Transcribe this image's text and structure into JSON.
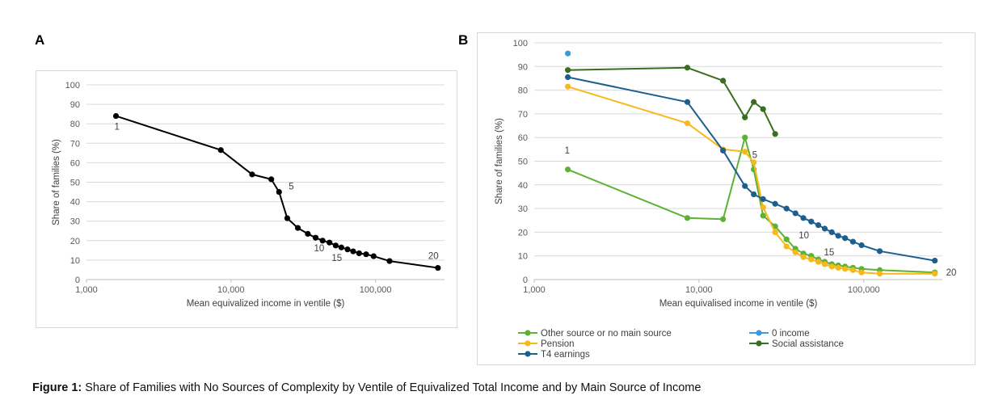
{
  "panel_a_letter": "A",
  "panel_b_letter": "B",
  "caption": {
    "label": "Figure 1:",
    "text": "Share of Families with No Sources of Complexity by Ventile of Equivalized Total Income and by Main Source of Income"
  },
  "chart_data": [
    {
      "type": "line",
      "panel": "A",
      "xlabel": "Mean equivalized income in ventile ($)",
      "ylabel": "Share of families (%)",
      "xscale": "log",
      "xlim": [
        1000,
        300000
      ],
      "ylim": [
        0,
        100
      ],
      "x_ticks": [
        1000,
        10000,
        100000
      ],
      "x_tick_labels": [
        "1,000",
        "10,000",
        "100,000"
      ],
      "y_ticks": [
        0,
        10,
        20,
        30,
        40,
        50,
        60,
        70,
        80,
        90,
        100
      ],
      "grid": true,
      "series": [
        {
          "color": "#000000",
          "x": [
            1600,
            8500,
            14000,
            19000,
            21500,
            24500,
            29000,
            34000,
            38500,
            43000,
            48000,
            53000,
            58000,
            64000,
            70000,
            77000,
            86000,
            97000,
            125000,
            270000
          ],
          "values": [
            84,
            66.5,
            54,
            51.5,
            45,
            31.5,
            26.5,
            23.5,
            21.5,
            20,
            19,
            17.5,
            16.5,
            15.5,
            14.5,
            13.5,
            13,
            12,
            9.5,
            6
          ]
        }
      ],
      "annotations": [
        {
          "text": "1",
          "x": 1600,
          "y": 84
        },
        {
          "text": "5",
          "x": 21500,
          "y": 45
        },
        {
          "text": "10",
          "x": 38500,
          "y": 21.5
        },
        {
          "text": "15",
          "x": 58000,
          "y": 16.5
        },
        {
          "text": "20",
          "x": 270000,
          "y": 6
        }
      ]
    },
    {
      "type": "line",
      "panel": "B",
      "xlabel": "Mean equivalised income in ventile ($)",
      "ylabel": "Share of families (%)",
      "xscale": "log",
      "xlim": [
        1000,
        300000
      ],
      "ylim": [
        0,
        100
      ],
      "x_ticks": [
        1000,
        10000,
        100000
      ],
      "x_tick_labels": [
        "1,000",
        "10,000",
        "100,000"
      ],
      "y_ticks": [
        0,
        10,
        20,
        30,
        40,
        50,
        60,
        70,
        80,
        90,
        100
      ],
      "grid": true,
      "legend": "bottom",
      "series": [
        {
          "name": "Other source or no main source",
          "color": "#5db134",
          "x": [
            1600,
            8500,
            14000,
            19000,
            21500,
            24500,
            29000,
            34000,
            38500,
            43000,
            48000,
            53000,
            58000,
            64000,
            70000,
            77000,
            86000,
            97000,
            125000,
            270000
          ],
          "values": [
            46.5,
            26,
            25.5,
            60,
            46.5,
            27,
            22.5,
            17,
            13,
            11,
            10,
            8.5,
            7.5,
            6.5,
            6,
            5.5,
            5,
            4.5,
            4,
            3
          ]
        },
        {
          "name": "0 income",
          "color": "#3b9ad8",
          "x": [
            1600
          ],
          "values": [
            95.5
          ]
        },
        {
          "name": "Pension",
          "color": "#f7b91a",
          "x": [
            1600,
            8500,
            14000,
            19000,
            21500,
            24500,
            29000,
            34000,
            38500,
            43000,
            48000,
            53000,
            58000,
            64000,
            70000,
            77000,
            86000,
            97000,
            125000,
            270000
          ],
          "values": [
            81.5,
            66,
            55,
            54,
            49.5,
            30.5,
            20,
            14,
            11.5,
            9.5,
            8.5,
            7.5,
            6.5,
            5.5,
            5,
            4.5,
            4,
            3,
            2.5,
            2.5
          ]
        },
        {
          "name": "Social assistance",
          "color": "#3a6e1f",
          "x": [
            1600,
            8500,
            14000,
            19000,
            21500,
            24500,
            29000
          ],
          "values": [
            88.5,
            89.5,
            84,
            68.5,
            75,
            72,
            61.5
          ]
        },
        {
          "name": "T4 earnings",
          "color": "#1c5f8e",
          "x": [
            1600,
            8500,
            14000,
            19000,
            21500,
            24500,
            29000,
            34000,
            38500,
            43000,
            48000,
            53000,
            58000,
            64000,
            70000,
            77000,
            86000,
            97000,
            125000,
            270000
          ],
          "values": [
            85.5,
            75,
            54.5,
            39.5,
            36,
            34,
            32,
            30,
            28,
            26,
            24.5,
            23,
            21.5,
            20,
            18.5,
            17.5,
            16,
            14.5,
            12,
            8
          ]
        }
      ],
      "annotations": [
        {
          "text": "1",
          "x": 1600,
          "y": 46.5
        },
        {
          "text": "5",
          "x": 21500,
          "y": 50
        },
        {
          "text": "10",
          "x": 38500,
          "y": 13
        },
        {
          "text": "15",
          "x": 58000,
          "y": 7.5
        },
        {
          "text": "20",
          "x": 270000,
          "y": 3
        }
      ]
    }
  ]
}
